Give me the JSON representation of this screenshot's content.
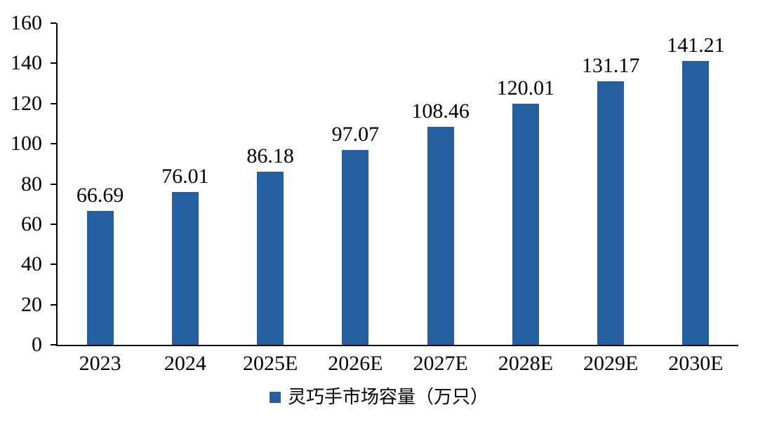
{
  "chart_data": {
    "type": "bar",
    "categories": [
      "2023",
      "2024",
      "2025E",
      "2026E",
      "2027E",
      "2028E",
      "2029E",
      "2030E"
    ],
    "values": [
      66.69,
      76.01,
      86.18,
      97.07,
      108.46,
      120.01,
      131.17,
      141.21
    ],
    "value_labels": [
      "66.69",
      "76.01",
      "86.18",
      "97.07",
      "108.46",
      "120.01",
      "131.17",
      "141.21"
    ],
    "title": "",
    "xlabel": "",
    "ylabel": "",
    "ylim": [
      0,
      160
    ],
    "yticks": [
      0,
      20,
      40,
      60,
      80,
      100,
      120,
      140,
      160
    ],
    "grid": false,
    "bar_color": "#255FA0",
    "axis_color": "#000000",
    "legend_position": "bottom-center",
    "legend": [
      {
        "label": "灵巧手市场容量（万只）",
        "color": "#255FA0"
      }
    ]
  }
}
